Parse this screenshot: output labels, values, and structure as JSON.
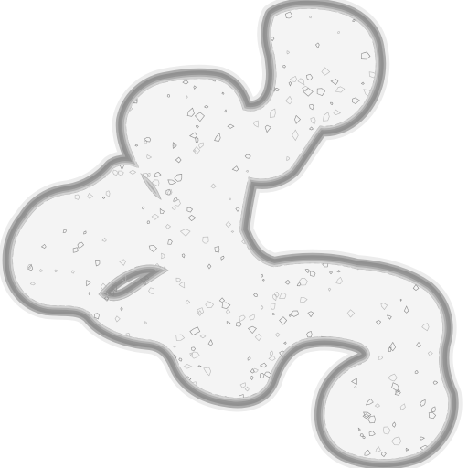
{
  "scene": {
    "background_color": "#ffffff",
    "floor_color": "#f4f4f4",
    "wall_shadow_colors": [
      "#3a3a3a",
      "#6e6e6e",
      "#9a9a9a",
      "#c4c4c4",
      "#e2e2e2"
    ],
    "contour_color": "#b8b8b8",
    "speckle_color": "#8a8a8a"
  }
}
